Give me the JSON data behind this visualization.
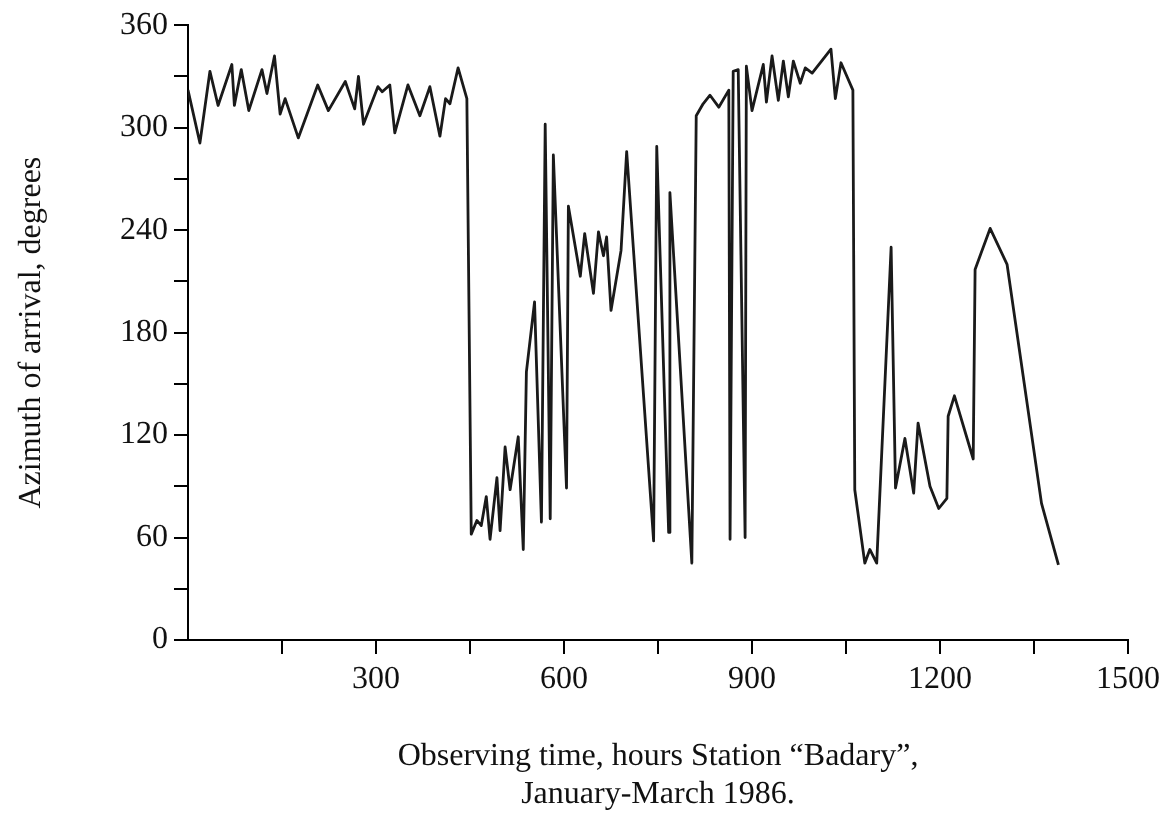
{
  "chart_data": {
    "type": "line",
    "xlabel": "Observing time, hours Station “Badary”,\nJanuary-March 1986.",
    "ylabel": "Azimuth of arrival, degrees",
    "x": [
      0,
      19,
      35,
      48,
      70,
      74,
      85,
      97,
      118,
      126,
      138,
      147,
      155,
      176,
      207,
      224,
      251,
      266,
      272,
      280,
      303,
      310,
      322,
      330,
      351,
      370,
      386,
      402,
      411,
      418,
      431,
      445,
      452,
      461,
      468,
      476,
      482,
      493,
      498,
      506,
      514,
      527,
      535,
      540,
      553,
      564,
      570,
      578,
      583,
      604,
      607,
      626,
      633,
      647,
      655,
      663,
      668,
      675,
      691,
      700,
      743,
      748,
      767,
      769,
      804,
      811,
      822,
      833,
      847,
      863,
      865,
      870,
      878,
      889,
      891,
      900,
      918,
      923,
      932,
      942,
      950,
      958,
      966,
      977,
      985,
      996,
      1026,
      1033,
      1042,
      1061,
      1064,
      1080,
      1088,
      1099,
      1122,
      1129,
      1144,
      1158,
      1165,
      1184,
      1198,
      1211,
      1213,
      1223,
      1253,
      1256,
      1280,
      1307,
      1362,
      1389
    ],
    "series": [
      {
        "color": "#1a1a1a",
        "values": [
          322,
          291,
          333,
          313,
          337,
          313,
          334,
          310,
          334,
          320,
          342,
          308,
          317,
          294,
          325,
          310,
          327,
          311,
          330,
          302,
          324,
          321,
          325,
          297,
          325,
          307,
          324,
          295,
          317,
          314,
          335,
          317,
          62,
          70,
          67,
          84,
          59,
          95,
          64,
          113,
          88,
          119,
          53,
          157,
          198,
          69,
          302,
          71,
          284,
          89,
          254,
          213,
          238,
          203,
          239,
          225,
          236,
          193,
          228,
          286,
          58,
          289,
          63,
          262,
          45,
          307,
          314,
          319,
          312,
          322,
          59,
          333,
          334,
          60,
          336,
          310,
          337,
          315,
          342,
          316,
          339,
          318,
          339,
          326,
          335,
          332,
          346,
          317,
          338,
          322,
          88,
          45,
          53,
          45,
          230,
          89,
          118,
          86,
          127,
          90,
          77,
          83,
          131,
          143,
          106,
          217,
          241,
          220,
          80,
          44
        ]
      }
    ],
    "xlim": [
      0,
      1500
    ],
    "ylim": [
      0,
      360
    ],
    "xticks": [
      {
        "value": 150,
        "label": null
      },
      300,
      {
        "value": 450,
        "label": null
      },
      600,
      {
        "value": 750,
        "label": null
      },
      900,
      {
        "value": 1050,
        "label": null
      },
      1200,
      {
        "value": 1350,
        "label": null
      },
      1500
    ],
    "yticks": [
      0,
      {
        "value": 30,
        "label": null
      },
      60,
      {
        "value": 90,
        "label": null
      },
      120,
      {
        "value": 150,
        "label": null
      },
      180,
      {
        "value": 210,
        "label": null
      },
      240,
      {
        "value": 270,
        "label": null
      },
      300,
      {
        "value": 330,
        "label": null
      },
      360
    ],
    "grid": false,
    "legend": false,
    "marker": "none",
    "line_style": "solid"
  }
}
